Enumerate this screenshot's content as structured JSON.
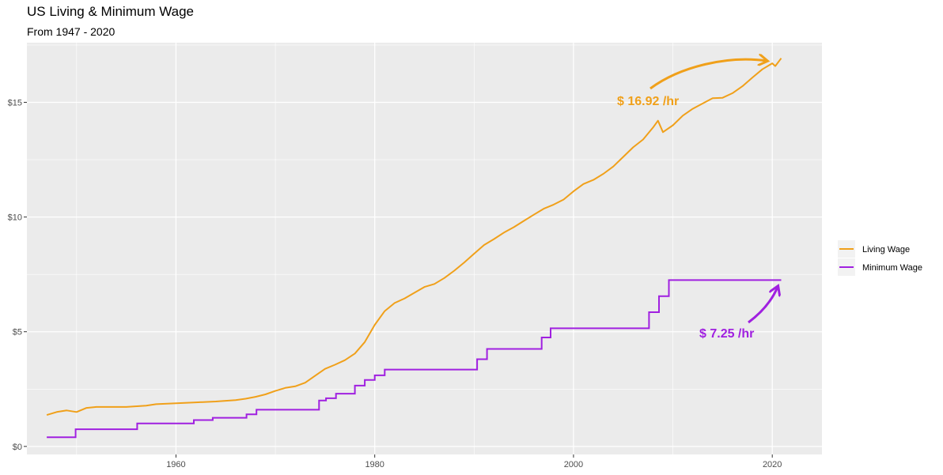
{
  "chart_data": {
    "type": "line",
    "title": "US Living & Minimum Wage",
    "subtitle": "From 1947 - 2020",
    "xlabel": "",
    "ylabel": "",
    "xlim": [
      1945,
      2025
    ],
    "ylim": [
      -0.35,
      17.6
    ],
    "x_ticks": [
      1960,
      1980,
      2000,
      2020
    ],
    "y_ticks": [
      0,
      5,
      10,
      15
    ],
    "y_tick_labels": [
      "$0",
      "$5",
      "$10",
      "$15"
    ],
    "grid": true,
    "legend_position": "right",
    "series": [
      {
        "name": "Living Wage",
        "color": "#F0A01A",
        "points": [
          [
            1947,
            1.37
          ],
          [
            1948,
            1.5
          ],
          [
            1949,
            1.57
          ],
          [
            1950,
            1.5
          ],
          [
            1951,
            1.68
          ],
          [
            1952,
            1.72
          ],
          [
            1953,
            1.72
          ],
          [
            1955,
            1.72
          ],
          [
            1957,
            1.78
          ],
          [
            1958,
            1.84
          ],
          [
            1960,
            1.88
          ],
          [
            1962,
            1.92
          ],
          [
            1964,
            1.96
          ],
          [
            1966,
            2.02
          ],
          [
            1967,
            2.08
          ],
          [
            1968,
            2.16
          ],
          [
            1969,
            2.27
          ],
          [
            1970,
            2.42
          ],
          [
            1971,
            2.55
          ],
          [
            1972,
            2.62
          ],
          [
            1973,
            2.78
          ],
          [
            1974,
            3.08
          ],
          [
            1975,
            3.38
          ],
          [
            1976,
            3.56
          ],
          [
            1977,
            3.76
          ],
          [
            1978,
            4.05
          ],
          [
            1979,
            4.55
          ],
          [
            1980,
            5.3
          ],
          [
            1981,
            5.9
          ],
          [
            1982,
            6.25
          ],
          [
            1983,
            6.45
          ],
          [
            1984,
            6.7
          ],
          [
            1985,
            6.95
          ],
          [
            1986,
            7.08
          ],
          [
            1987,
            7.34
          ],
          [
            1988,
            7.66
          ],
          [
            1989,
            8.02
          ],
          [
            1990,
            8.4
          ],
          [
            1991,
            8.78
          ],
          [
            1992,
            9.04
          ],
          [
            1993,
            9.32
          ],
          [
            1994,
            9.56
          ],
          [
            1995,
            9.83
          ],
          [
            1996,
            10.1
          ],
          [
            1997,
            10.36
          ],
          [
            1998,
            10.54
          ],
          [
            1999,
            10.76
          ],
          [
            2000,
            11.12
          ],
          [
            2001,
            11.44
          ],
          [
            2002,
            11.62
          ],
          [
            2003,
            11.88
          ],
          [
            2004,
            12.2
          ],
          [
            2005,
            12.62
          ],
          [
            2006,
            13.04
          ],
          [
            2007,
            13.38
          ],
          [
            2008,
            13.9
          ],
          [
            2008.5,
            14.2
          ],
          [
            2009,
            13.7
          ],
          [
            2010,
            14.0
          ],
          [
            2011,
            14.42
          ],
          [
            2012,
            14.72
          ],
          [
            2013,
            14.95
          ],
          [
            2014,
            15.18
          ],
          [
            2015,
            15.2
          ],
          [
            2016,
            15.4
          ],
          [
            2017,
            15.7
          ],
          [
            2018,
            16.08
          ],
          [
            2019,
            16.44
          ],
          [
            2020,
            16.7
          ],
          [
            2020.3,
            16.58
          ],
          [
            2020.9,
            16.92
          ]
        ]
      },
      {
        "name": "Minimum Wage",
        "color": "#A020E0",
        "steps": [
          [
            1947,
            0.4
          ],
          [
            1949.9,
            0.75
          ],
          [
            1956.1,
            1.0
          ],
          [
            1961.8,
            1.15
          ],
          [
            1963.7,
            1.25
          ],
          [
            1967.1,
            1.4
          ],
          [
            1968.1,
            1.6
          ],
          [
            1974.4,
            2.0
          ],
          [
            1975.1,
            2.1
          ],
          [
            1976.1,
            2.3
          ],
          [
            1978.0,
            2.65
          ],
          [
            1979.0,
            2.9
          ],
          [
            1980.0,
            3.1
          ],
          [
            1981.0,
            3.35
          ],
          [
            1990.3,
            3.8
          ],
          [
            1991.3,
            4.25
          ],
          [
            1996.8,
            4.75
          ],
          [
            1997.7,
            5.15
          ],
          [
            2007.6,
            5.85
          ],
          [
            2008.6,
            6.55
          ],
          [
            2009.6,
            7.25
          ],
          [
            2020.9,
            7.25
          ]
        ]
      }
    ],
    "annotations": [
      {
        "text": "$ 16.92 /hr",
        "color": "#F0A01A"
      },
      {
        "text": "$ 7.25 /hr",
        "color": "#A020E0"
      }
    ]
  }
}
